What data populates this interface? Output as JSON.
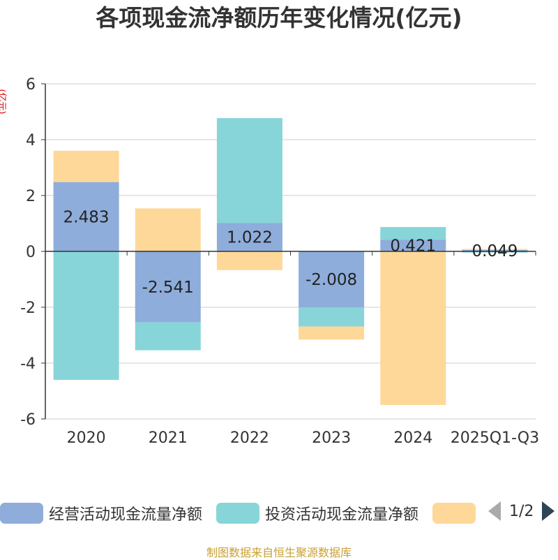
{
  "chart_data": {
    "type": "bar",
    "stacked": true,
    "title": "各项现金流净额历年变化情况(亿元)",
    "ylabel": "(亿元)",
    "xlabel": "",
    "ylim": [
      -6,
      6
    ],
    "yticks": [
      6,
      4,
      2,
      0,
      -2,
      -4,
      -6
    ],
    "categories": [
      "2020",
      "2021",
      "2022",
      "2023",
      "2024",
      "2025Q1-Q3"
    ],
    "series": [
      {
        "name": "经营活动现金流量净额",
        "color": "#8eaddb",
        "values": [
          2.483,
          -2.541,
          1.022,
          -2.008,
          0.421,
          0.049
        ],
        "labels": [
          "2.483",
          "-2.541",
          "1.022",
          "-2.008",
          "0.421",
          "0.049"
        ]
      },
      {
        "name": "投资活动现金流量净额",
        "color": "#87d5d9",
        "values": [
          -4.6,
          -1.0,
          3.75,
          -0.68,
          0.45,
          -0.04
        ]
      },
      {
        "name": "",
        "color": "#fdd898",
        "values": [
          1.12,
          1.54,
          -0.67,
          -0.47,
          -5.5,
          0.04
        ]
      }
    ],
    "grid": true,
    "legend_position": "bottom"
  },
  "legend": {
    "items": [
      {
        "label": "经营活动现金流量净额",
        "color": "#8eaddb"
      },
      {
        "label": "投资活动现金流量净额",
        "color": "#87d5d9"
      },
      {
        "label": "",
        "color": "#fdd898"
      }
    ],
    "page_indicator": "1/2"
  },
  "source_note": "制图数据来自恒生聚源数据库"
}
